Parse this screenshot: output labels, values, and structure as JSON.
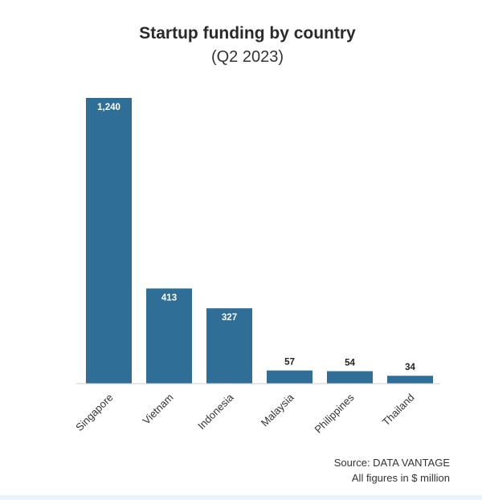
{
  "title": "Startup funding by country",
  "subtitle": "(Q2 2023)",
  "source_line": "Source: DATA VANTAGE",
  "note_line": "All figures in $ million",
  "colors": {
    "bar": "#2f6e96",
    "inside_label": "#ffffff",
    "outside_label": "#222222",
    "axis": "#cccccc"
  },
  "chart_data": {
    "type": "bar",
    "title": "Startup funding by country",
    "subtitle": "(Q2 2023)",
    "xlabel": "",
    "ylabel": "",
    "categories": [
      "Singapore",
      "Vietnam",
      "Indonesia",
      "Malaysia",
      "Philippines",
      "Thailand"
    ],
    "values": [
      1240,
      413,
      327,
      57,
      54,
      34
    ],
    "value_labels": [
      "1,240",
      "413",
      "327",
      "57",
      "54",
      "34"
    ],
    "ylim": [
      0,
      1240
    ],
    "grid": false,
    "legend": "none"
  }
}
